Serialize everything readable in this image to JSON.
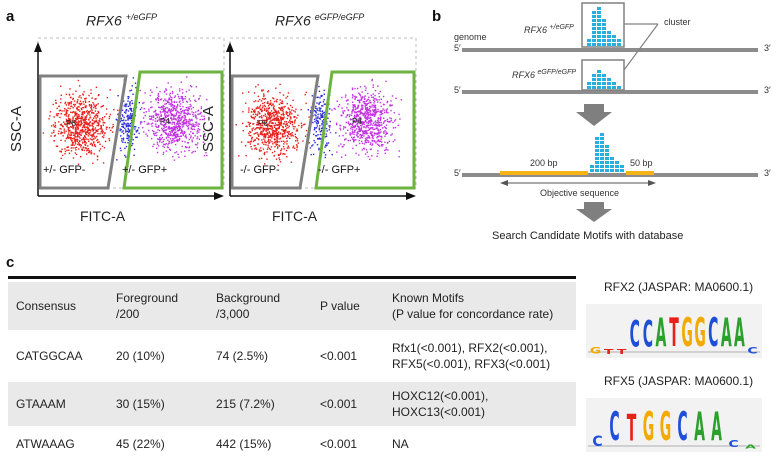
{
  "panels": {
    "a": "a",
    "b": "b",
    "c": "c"
  },
  "flow": {
    "left": {
      "gene": "RFX6",
      "genotype": "+/eGFP",
      "gate_neg": "+/- GFP-",
      "gate_pos": "+/- GFP+"
    },
    "right": {
      "gene": "RFX6",
      "genotype": "eGFP/eGFP",
      "gate_neg": "-/- GFP-",
      "gate_pos": "-/- GFP+"
    },
    "y_axis": "SSC-A",
    "x_axis": "FITC-A",
    "subgate_neg": "P6",
    "subgate_pos": "P4"
  },
  "schematic": {
    "genome": "genome",
    "cluster": "cluster",
    "five_prime": "5′",
    "three_prime": "3′",
    "track1_gene": "RFX6",
    "track1_geno": "+/eGFP",
    "track2_gene": "RFX6",
    "track2_geno": "eGFP/eGFP",
    "upstream": "200 bp",
    "downstream": "50 bp",
    "objective": "Objective sequence",
    "search": "Search Candidate Motifs with database",
    "colors": {
      "bar": "#29aee0",
      "flank": "#f5b316",
      "line": "#8c8c8c"
    }
  },
  "table": {
    "headers": {
      "consensus": "Consensus",
      "fg1": "Foreground",
      "fg2": "/200",
      "bg1": "Background",
      "bg2": "/3,000",
      "p": "P value",
      "km1": "Known Motifs",
      "km2": "(P value for concordance rate)"
    },
    "rows": [
      {
        "consensus": "CATGGCAA",
        "fg": "20 (10%)",
        "bg": "74 (2.5%)",
        "p": "<0.001",
        "km1": "Rfx1(<0.001), RFX2(<0.001),",
        "km2": "RFX5(<0.001), RFX3(<0.001)"
      },
      {
        "consensus": "GTAAAM",
        "fg": "30 (15%)",
        "bg": "215 (7.2%)",
        "p": "<0.001",
        "km1": "HOXC12(<0.001),",
        "km2": "HOXC13(<0.001)"
      },
      {
        "consensus": "ATWAAAG",
        "fg": "45 (22%)",
        "bg": "442 (15%)",
        "p": "<0.001",
        "km1": "NA",
        "km2": ""
      }
    ]
  },
  "logos": {
    "top_title": "RFX2 (JASPAR: MA0600.1)",
    "top_seq": "GTTCCATGGCAAC",
    "bottom_title": "RFX5 (JASPAR: MA0600.1)",
    "bottom_seq": "CCTGGCAACA"
  }
}
